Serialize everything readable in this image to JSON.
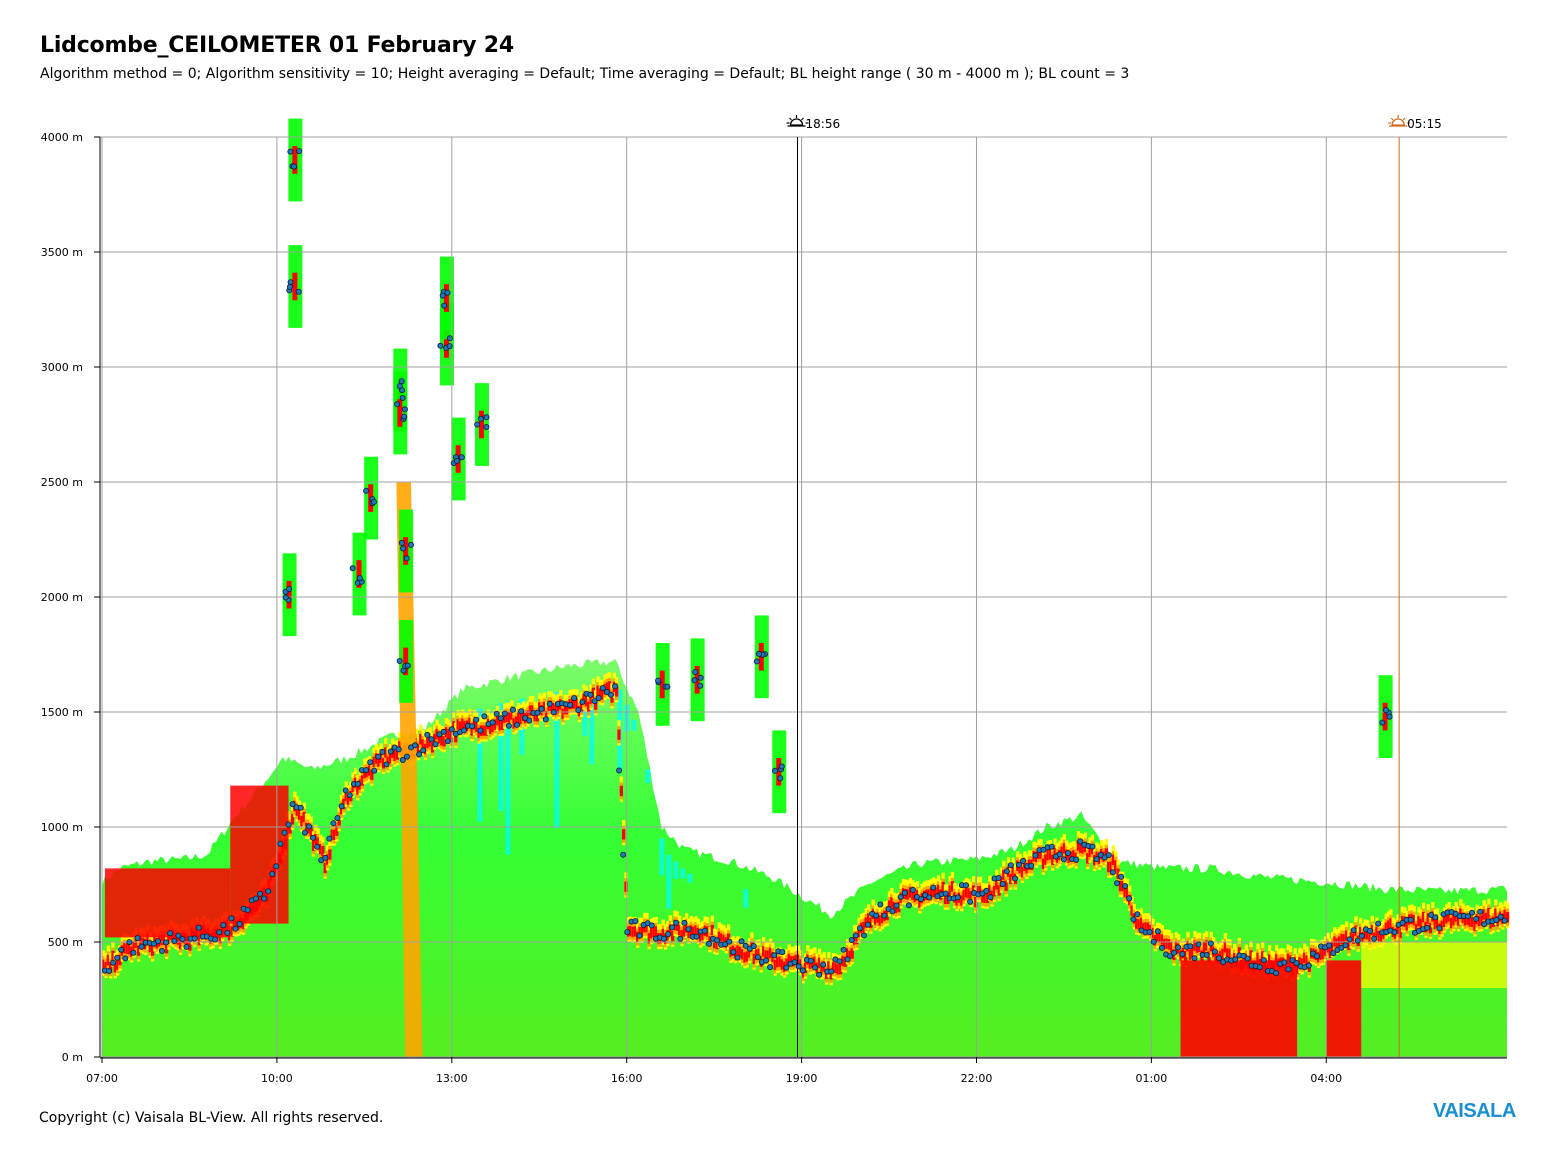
{
  "header": {
    "title": "Lidcombe_CEILOMETER 01 February 24",
    "subtitle": "Algorithm method = 0; Algorithm sensitivity = 10; Height averaging = Default; Time averaging = Default; BL height range ( 30 m - 4000 m ); BL count = 3"
  },
  "footer": {
    "copyright": "Copyright (c) Vaisala BL-View. All rights reserved.",
    "brand": "VAISALA"
  },
  "chart_data": {
    "type": "heatmap",
    "title": "Lidcombe_CEILOMETER 01 February 24",
    "xlabel": "",
    "ylabel": "",
    "x_start_hours": 7.0,
    "x_end_hours": 31.1,
    "ylim": [
      0,
      4000
    ],
    "grid": true,
    "x_ticks": [
      {
        "label": "07:00",
        "hours": 7
      },
      {
        "label": "10:00",
        "hours": 10
      },
      {
        "label": "13:00",
        "hours": 13
      },
      {
        "label": "16:00",
        "hours": 16
      },
      {
        "label": "19:00",
        "hours": 19
      },
      {
        "label": "22:00",
        "hours": 22
      },
      {
        "label": "01:00",
        "hours": 25
      },
      {
        "label": "04:00",
        "hours": 28
      }
    ],
    "y_ticks": [
      {
        "label": "0 m",
        "value": 0
      },
      {
        "label": "500 m",
        "value": 500
      },
      {
        "label": "1000 m",
        "value": 1000
      },
      {
        "label": "1500 m",
        "value": 1500
      },
      {
        "label": "2000 m",
        "value": 2000
      },
      {
        "label": "2500 m",
        "value": 2500
      },
      {
        "label": "3000 m",
        "value": 3000
      },
      {
        "label": "3500 m",
        "value": 3500
      },
      {
        "label": "4000 m",
        "value": 4000
      }
    ],
    "events": [
      {
        "label": "18:56",
        "type": "sunset",
        "hours": 18.93,
        "color": "#000000"
      },
      {
        "label": "05:15",
        "type": "sunrise",
        "hours": 29.25,
        "color": "#d2691e"
      }
    ],
    "backscatter_colors": [
      "#00ff00",
      "#7fff00",
      "#ffff00",
      "#ffa500",
      "#ff0000",
      "#00ffff"
    ],
    "bl_marker_color": "#1f78b4",
    "aerosol_top": [
      {
        "hours": 7.0,
        "value": 760
      },
      {
        "hours": 7.3,
        "value": 820
      },
      {
        "hours": 7.8,
        "value": 850
      },
      {
        "hours": 8.4,
        "value": 860
      },
      {
        "hours": 8.8,
        "value": 880
      },
      {
        "hours": 9.3,
        "value": 1050
      },
      {
        "hours": 9.8,
        "value": 1200
      },
      {
        "hours": 10.1,
        "value": 1300
      },
      {
        "hours": 10.6,
        "value": 1250
      },
      {
        "hours": 11.2,
        "value": 1300
      },
      {
        "hours": 12.0,
        "value": 1400
      },
      {
        "hours": 12.5,
        "value": 1420
      },
      {
        "hours": 13.2,
        "value": 1600
      },
      {
        "hours": 14.0,
        "value": 1650
      },
      {
        "hours": 15.0,
        "value": 1700
      },
      {
        "hours": 15.8,
        "value": 1720
      },
      {
        "hours": 16.2,
        "value": 1500
      },
      {
        "hours": 16.6,
        "value": 1000
      },
      {
        "hours": 17.0,
        "value": 900
      },
      {
        "hours": 17.8,
        "value": 850
      },
      {
        "hours": 18.5,
        "value": 780
      },
      {
        "hours": 19.5,
        "value": 620
      },
      {
        "hours": 20.2,
        "value": 760
      },
      {
        "hours": 21.0,
        "value": 840
      },
      {
        "hours": 22.0,
        "value": 860
      },
      {
        "hours": 22.6,
        "value": 900
      },
      {
        "hours": 23.2,
        "value": 1000
      },
      {
        "hours": 23.8,
        "value": 1050
      },
      {
        "hours": 24.4,
        "value": 850
      },
      {
        "hours": 25.2,
        "value": 820
      },
      {
        "hours": 26.0,
        "value": 820
      },
      {
        "hours": 27.0,
        "value": 780
      },
      {
        "hours": 28.0,
        "value": 760
      },
      {
        "hours": 29.0,
        "value": 730
      },
      {
        "hours": 30.0,
        "value": 720
      },
      {
        "hours": 31.1,
        "value": 730
      }
    ],
    "bl_height": [
      {
        "hours": 7.0,
        "value": 380
      },
      {
        "hours": 7.5,
        "value": 480
      },
      {
        "hours": 8.0,
        "value": 500
      },
      {
        "hours": 8.6,
        "value": 520
      },
      {
        "hours": 9.2,
        "value": 560
      },
      {
        "hours": 9.8,
        "value": 700
      },
      {
        "hours": 10.3,
        "value": 1100
      },
      {
        "hours": 10.8,
        "value": 850
      },
      {
        "hours": 11.2,
        "value": 1150
      },
      {
        "hours": 11.8,
        "value": 1300
      },
      {
        "hours": 12.4,
        "value": 1350
      },
      {
        "hours": 13.0,
        "value": 1420
      },
      {
        "hours": 13.6,
        "value": 1450
      },
      {
        "hours": 14.2,
        "value": 1480
      },
      {
        "hours": 15.0,
        "value": 1520
      },
      {
        "hours": 15.8,
        "value": 1600
      },
      {
        "hours": 16.0,
        "value": 560
      },
      {
        "hours": 16.5,
        "value": 540
      },
      {
        "hours": 17.2,
        "value": 560
      },
      {
        "hours": 17.8,
        "value": 480
      },
      {
        "hours": 18.4,
        "value": 430
      },
      {
        "hours": 19.0,
        "value": 400
      },
      {
        "hours": 19.6,
        "value": 390
      },
      {
        "hours": 20.1,
        "value": 580
      },
      {
        "hours": 20.6,
        "value": 680
      },
      {
        "hours": 21.4,
        "value": 720
      },
      {
        "hours": 22.1,
        "value": 700
      },
      {
        "hours": 22.6,
        "value": 800
      },
      {
        "hours": 23.2,
        "value": 880
      },
      {
        "hours": 23.8,
        "value": 900
      },
      {
        "hours": 24.3,
        "value": 850
      },
      {
        "hours": 24.8,
        "value": 560
      },
      {
        "hours": 25.4,
        "value": 460
      },
      {
        "hours": 26.0,
        "value": 470
      },
      {
        "hours": 26.6,
        "value": 420
      },
      {
        "hours": 27.2,
        "value": 400
      },
      {
        "hours": 27.8,
        "value": 430
      },
      {
        "hours": 28.4,
        "value": 520
      },
      {
        "hours": 29.0,
        "value": 560
      },
      {
        "hours": 29.6,
        "value": 580
      },
      {
        "hours": 30.4,
        "value": 600
      },
      {
        "hours": 31.1,
        "value": 610
      }
    ],
    "high_layers": [
      {
        "hours": 10.3,
        "values": [
          3350,
          3900
        ]
      },
      {
        "hours": 10.2,
        "values": [
          2010
        ]
      },
      {
        "hours": 11.4,
        "values": [
          2100
        ]
      },
      {
        "hours": 11.6,
        "values": [
          2430
        ]
      },
      {
        "hours": 12.1,
        "values": [
          2900,
          2800
        ]
      },
      {
        "hours": 12.2,
        "values": [
          2200,
          1720
        ]
      },
      {
        "hours": 12.9,
        "values": [
          3100,
          3300
        ]
      },
      {
        "hours": 13.1,
        "values": [
          2600
        ]
      },
      {
        "hours": 13.5,
        "values": [
          2750
        ]
      },
      {
        "hours": 16.6,
        "values": [
          1620
        ]
      },
      {
        "hours": 17.2,
        "values": [
          1640
        ]
      },
      {
        "hours": 18.3,
        "values": [
          1740
        ]
      },
      {
        "hours": 18.6,
        "values": [
          1240
        ]
      },
      {
        "hours": 29.0,
        "values": [
          1480
        ]
      }
    ]
  }
}
